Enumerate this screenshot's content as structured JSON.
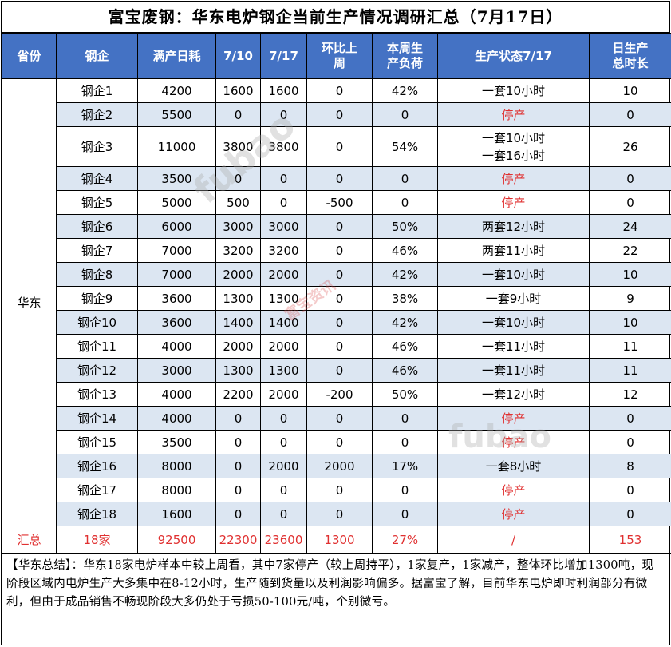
{
  "title": "富宝废钢：华东电炉钢企当前生产情况调研汇总（7月17日）",
  "headers": {
    "province": "省份",
    "company": "钢企",
    "full_capacity": "满产日耗",
    "d0710": "7/10",
    "d0717": "7/17",
    "wow_1": "环比上",
    "wow_2": "周",
    "load_1": "本周生",
    "load_2": "产负荷",
    "status": "生产状态7/17",
    "hours_1": "日生产",
    "hours_2": "总时长"
  },
  "province": "华东",
  "rows": [
    {
      "name": "钢企1",
      "full": "4200",
      "d0710": "1600",
      "d0717": "1600",
      "wow": "0",
      "load": "42%",
      "status": [
        "一套10小时"
      ],
      "hours": "10"
    },
    {
      "name": "钢企2",
      "full": "5500",
      "d0710": "0",
      "d0717": "0",
      "wow": "0",
      "load": "0",
      "status": [
        "停产"
      ],
      "hours": "0"
    },
    {
      "name": "钢企3",
      "full": "11000",
      "d0710": "3800",
      "d0717": "3800",
      "wow": "0",
      "load": "54%",
      "status": [
        "一套10小时",
        "一套16小时"
      ],
      "hours": "26"
    },
    {
      "name": "钢企4",
      "full": "3500",
      "d0710": "0",
      "d0717": "0",
      "wow": "0",
      "load": "0",
      "status": [
        "停产"
      ],
      "hours": "0"
    },
    {
      "name": "钢企5",
      "full": "5000",
      "d0710": "500",
      "d0717": "0",
      "wow": "-500",
      "load": "0",
      "status": [
        "停产"
      ],
      "hours": "0"
    },
    {
      "name": "钢企6",
      "full": "6000",
      "d0710": "3000",
      "d0717": "3000",
      "wow": "0",
      "load": "50%",
      "status": [
        "两套12小时"
      ],
      "hours": "24"
    },
    {
      "name": "钢企7",
      "full": "7000",
      "d0710": "3200",
      "d0717": "3200",
      "wow": "0",
      "load": "46%",
      "status": [
        "两套11小时"
      ],
      "hours": "22"
    },
    {
      "name": "钢企8",
      "full": "7000",
      "d0710": "2000",
      "d0717": "2000",
      "wow": "0",
      "load": "42%",
      "status": [
        "一套10小时"
      ],
      "hours": "10"
    },
    {
      "name": "钢企9",
      "full": "3600",
      "d0710": "1300",
      "d0717": "1300",
      "wow": "0",
      "load": "38%",
      "status": [
        "一套9小时"
      ],
      "hours": "9"
    },
    {
      "name": "钢企10",
      "full": "3600",
      "d0710": "1400",
      "d0717": "1400",
      "wow": "0",
      "load": "42%",
      "status": [
        "一套10小时"
      ],
      "hours": "10"
    },
    {
      "name": "钢企11",
      "full": "4000",
      "d0710": "2000",
      "d0717": "2000",
      "wow": "0",
      "load": "46%",
      "status": [
        "一套11小时"
      ],
      "hours": "11"
    },
    {
      "name": "钢企12",
      "full": "3000",
      "d0710": "1300",
      "d0717": "1300",
      "wow": "0",
      "load": "46%",
      "status": [
        "一套11小时"
      ],
      "hours": "11"
    },
    {
      "name": "钢企13",
      "full": "4000",
      "d0710": "2200",
      "d0717": "2000",
      "wow": "-200",
      "load": "50%",
      "status": [
        "一套12小时"
      ],
      "hours": "12"
    },
    {
      "name": "钢企14",
      "full": "4000",
      "d0710": "0",
      "d0717": "0",
      "wow": "0",
      "load": "0",
      "status": [
        "停产"
      ],
      "hours": "0"
    },
    {
      "name": "钢企15",
      "full": "3500",
      "d0710": "0",
      "d0717": "0",
      "wow": "0",
      "load": "0",
      "status": [
        "停产"
      ],
      "hours": "0"
    },
    {
      "name": "钢企16",
      "full": "8000",
      "d0710": "0",
      "d0717": "2000",
      "wow": "2000",
      "load": "17%",
      "status": [
        "一套8小时"
      ],
      "hours": "8"
    },
    {
      "name": "钢企17",
      "full": "8000",
      "d0710": "0",
      "d0717": "0",
      "wow": "0",
      "load": "0",
      "status": [
        "停产"
      ],
      "hours": "0"
    },
    {
      "name": "钢企18",
      "full": "1600",
      "d0710": "0",
      "d0717": "0",
      "wow": "0",
      "load": "0",
      "status": [
        "停产"
      ],
      "hours": "0"
    }
  ],
  "total": {
    "label": "汇总",
    "count": "18家",
    "full": "92500",
    "d0710": "22300",
    "d0717": "23600",
    "wow": "1300",
    "load": "27%",
    "status": "/",
    "hours": "153"
  },
  "summary": "【华东总结】：华东18家电炉样本中较上周看，其中7家停产（较上周持平），1家复产，1家减产，整体环比增加1300吨，现阶段区域内电炉生产大多集中在8-12小时，生产随到货量以及利润影响偏多。据富宝了解，目前华东电炉即时利润部分有微利，但由于成品销售不畅现阶段大多仍处于亏损50-100元/吨，个别微亏。",
  "watermark": {
    "brand": "fubao",
    "cn": "富宝资讯"
  },
  "colors": {
    "header_bg": "#4472c4",
    "alt_row_bg": "#dce6f2",
    "stop_text": "#e03030"
  }
}
